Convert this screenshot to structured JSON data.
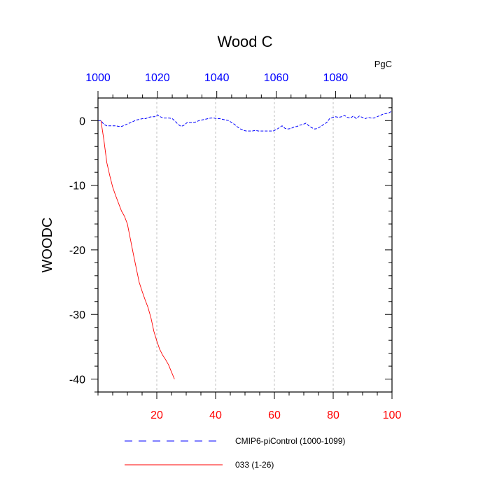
{
  "chart_data": {
    "type": "line",
    "title": "Wood C",
    "units": "PgC",
    "ylabel": "WOODC",
    "xlabel": "",
    "ylim": [
      -42,
      3.5
    ],
    "grid": "vertical dashed at major bottom ticks",
    "bottom_axis": {
      "range": [
        0,
        100
      ],
      "ticks": [
        20,
        40,
        60,
        80,
        100
      ],
      "tick_labels": [
        "20",
        "40",
        "60",
        "80",
        "100"
      ],
      "color": "#ff0000"
    },
    "top_axis": {
      "range": [
        1000,
        1099
      ],
      "ticks": [
        1000,
        1020,
        1040,
        1060,
        1080
      ],
      "tick_labels": [
        "1000",
        "1020",
        "1040",
        "1060",
        "1080"
      ],
      "color": "#0000ff"
    },
    "left_axis": {
      "ticks": [
        0,
        -10,
        -20,
        -30,
        -40
      ],
      "tick_labels": [
        "0",
        "-10",
        "-20",
        "-30",
        "-40"
      ]
    },
    "series": [
      {
        "name": "CMIP6-piControl (1000-1099)",
        "color": "#0000ff",
        "dash": "dashed",
        "axis": "top",
        "x": [
          1000,
          1001,
          1002,
          1003,
          1004,
          1005,
          1006,
          1007,
          1008,
          1009,
          1010,
          1011,
          1012,
          1013,
          1014,
          1015,
          1016,
          1017,
          1018,
          1019,
          1020,
          1021,
          1022,
          1023,
          1024,
          1025,
          1026,
          1027,
          1028,
          1029,
          1030,
          1031,
          1032,
          1033,
          1034,
          1035,
          1036,
          1037,
          1038,
          1039,
          1040,
          1041,
          1042,
          1043,
          1044,
          1045,
          1046,
          1047,
          1048,
          1049,
          1050,
          1051,
          1052,
          1053,
          1054,
          1055,
          1056,
          1057,
          1058,
          1059,
          1060,
          1061,
          1062,
          1063,
          1064,
          1065,
          1066,
          1067,
          1068,
          1069,
          1070,
          1071,
          1072,
          1073,
          1074,
          1075,
          1076,
          1077,
          1078,
          1079,
          1080,
          1081,
          1082,
          1083,
          1084,
          1085,
          1086,
          1087,
          1088,
          1089,
          1090,
          1091,
          1092,
          1093,
          1094,
          1095,
          1096,
          1097,
          1098,
          1099
        ],
        "y": [
          0,
          0,
          -0.6,
          -0.8,
          -0.8,
          -0.8,
          -0.8,
          -0.9,
          -0.9,
          -0.7,
          -0.5,
          -0.3,
          -0.1,
          0.1,
          0.2,
          0.3,
          0.3,
          0.5,
          0.6,
          0.6,
          0.9,
          0.6,
          0.4,
          0.4,
          0.4,
          0.3,
          -0.1,
          -0.6,
          -0.9,
          -0.7,
          -0.3,
          -0.3,
          -0.3,
          -0.2,
          0,
          0.1,
          0.2,
          0.3,
          0.4,
          0.4,
          0.3,
          0.3,
          0.2,
          0.1,
          0,
          -0.3,
          -0.6,
          -1,
          -1.3,
          -1.5,
          -1.6,
          -1.6,
          -1.6,
          -1.5,
          -1.6,
          -1.6,
          -1.6,
          -1.6,
          -1.6,
          -1.6,
          -1.4,
          -1.1,
          -0.8,
          -1.2,
          -1.3,
          -1.2,
          -1,
          -0.9,
          -0.7,
          -0.6,
          -0.4,
          -0.8,
          -1.1,
          -1.3,
          -1.2,
          -0.9,
          -0.6,
          -0.3,
          0.3,
          0.5,
          0.6,
          0.5,
          0.6,
          0.8,
          0.5,
          0.4,
          0.7,
          0.3,
          0.7,
          0.5,
          0.3,
          0.5,
          0.4,
          0.4,
          0.6,
          0.8,
          1,
          1.1,
          1.2,
          1.5
        ]
      },
      {
        "name": "033 (1-26)",
        "color": "#ff0000",
        "dash": "solid",
        "axis": "bottom",
        "x": [
          1,
          2,
          3,
          4,
          5,
          6,
          7,
          8,
          9,
          10,
          11,
          12,
          13,
          14,
          15,
          16,
          17,
          18,
          19,
          20,
          21,
          22,
          23,
          24,
          25,
          26
        ],
        "y": [
          0,
          -3,
          -6.5,
          -8.5,
          -10.3,
          -11.6,
          -12.8,
          -14,
          -14.8,
          -16,
          -18.3,
          -20.6,
          -22.8,
          -25,
          -26.4,
          -27.7,
          -28.9,
          -30.5,
          -32.6,
          -34.1,
          -35.4,
          -36.3,
          -37,
          -37.8,
          -38.9,
          -40
        ]
      }
    ],
    "legend": {
      "placement": "bottom",
      "entries": [
        {
          "label": "CMIP6-piControl (1000-1099)",
          "color": "#0000ff",
          "dash": "dashed"
        },
        {
          "label": "033 (1-26)",
          "color": "#ff0000",
          "dash": "solid"
        }
      ]
    }
  }
}
